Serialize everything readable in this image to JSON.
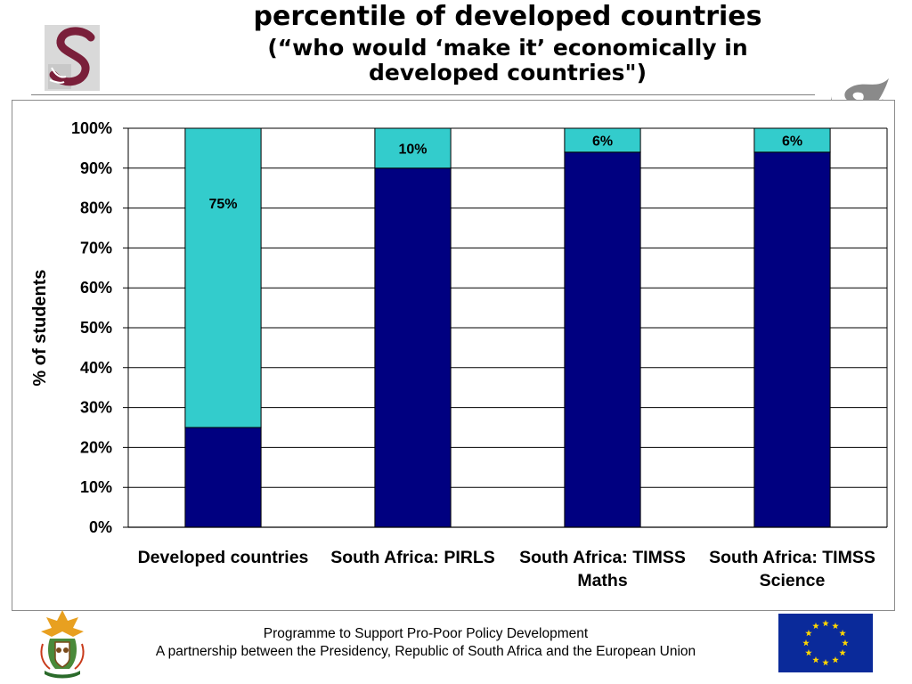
{
  "slide": {
    "title_line1": "percentile of developed countries",
    "title_line2": "(“who would ‘make it’ economically in developed countries\")",
    "footer_line1": "Programme to Support Pro-Poor Policy Development",
    "footer_line2": "A partnership between the Presidency, Republic of South Africa and the European Union"
  },
  "colors": {
    "bottom_segment": "#000080",
    "top_segment": "#33CCCC",
    "gridline": "#000000"
  },
  "chart_data": {
    "type": "bar",
    "stacked": true,
    "ylabel": "% of students",
    "ylim": [
      0,
      100
    ],
    "yticks": [
      "0%",
      "10%",
      "20%",
      "30%",
      "40%",
      "50%",
      "60%",
      "70%",
      "80%",
      "90%",
      "100%"
    ],
    "categories": [
      [
        "Developed countries"
      ],
      [
        "South Africa: PIRLS"
      ],
      [
        "South Africa: TIMSS",
        "Maths"
      ],
      [
        "South Africa: TIMSS",
        "Science"
      ]
    ],
    "series": [
      {
        "values": [
          25,
          90,
          94,
          94
        ]
      },
      {
        "values": [
          75,
          10,
          6,
          6
        ]
      }
    ],
    "data_labels": [
      "75%",
      "10%",
      "6%",
      "6%"
    ],
    "grid": true,
    "legend": "none"
  }
}
